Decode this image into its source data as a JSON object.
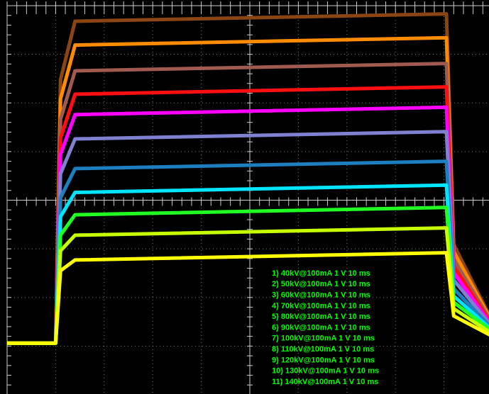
{
  "chart_data": {
    "type": "line",
    "x": [
      0,
      1.0,
      1.1,
      1.4,
      9.05,
      9.2,
      10
    ],
    "xlim": [
      0,
      10
    ],
    "ylim": [
      -4,
      4
    ],
    "grid": true,
    "series": [
      {
        "name": "1) 40kV@100mA 1 V 10 ms",
        "color": "#ffff00",
        "values": [
          -2.94,
          -2.94,
          -1.45,
          -1.23,
          -1.08,
          -2.38,
          -2.8
        ]
      },
      {
        "name": "2) 50kV@100mA 1 V 10 ms",
        "color": "#c8ff00",
        "values": [
          -2.94,
          -2.94,
          -1.04,
          -0.72,
          -0.57,
          -2.23,
          -2.75
        ]
      },
      {
        "name": "3) 60kV@100mA 1 V 10 ms",
        "color": "#22ff22",
        "values": [
          -2.94,
          -2.94,
          -0.72,
          -0.3,
          -0.15,
          -2.1,
          -2.7
        ]
      },
      {
        "name": "4) 70kV@100mA 1 V 10 ms",
        "color": "#00e5ff",
        "values": [
          -2.94,
          -2.94,
          -0.34,
          0.16,
          0.31,
          -1.97,
          -2.68
        ]
      },
      {
        "name": "5) 80kV@100mA 1 V 10 ms",
        "color": "#1e7fc0",
        "values": [
          -2.94,
          -2.94,
          0.05,
          0.65,
          0.8,
          -1.82,
          -2.65
        ]
      },
      {
        "name": "6) 90kV@100mA 1 V 10 ms",
        "color": "#8080d0",
        "values": [
          -2.94,
          -2.94,
          0.54,
          1.26,
          1.41,
          -1.64,
          -2.62
        ]
      },
      {
        "name": "7) 100kV@100mA 1 V 10 ms",
        "color": "#ff00ff",
        "values": [
          -2.94,
          -2.94,
          0.94,
          1.76,
          1.91,
          -1.49,
          -2.6
        ]
      },
      {
        "name": "8) 110kV@100mA 1 V 10 ms",
        "color": "#ff1010",
        "values": [
          -2.94,
          -2.94,
          1.28,
          2.18,
          2.33,
          -1.36,
          -2.58
        ]
      },
      {
        "name": "9) 120kV@100mA 1 V 10 ms",
        "color": "#a05a50",
        "values": [
          -2.94,
          -2.94,
          1.66,
          2.66,
          2.81,
          -1.22,
          -2.55
        ]
      },
      {
        "name": "10) 130kV@100mA 1 V 10 ms",
        "color": "#ff8c00",
        "values": [
          -2.94,
          -2.94,
          2.08,
          3.19,
          3.34,
          -1.06,
          -2.52
        ]
      },
      {
        "name": "11) 140kV@100mA 1 V 10 ms",
        "color": "#8b4513",
        "values": [
          -2.94,
          -2.94,
          2.48,
          3.68,
          3.83,
          -0.91,
          -2.5
        ]
      }
    ]
  }
}
